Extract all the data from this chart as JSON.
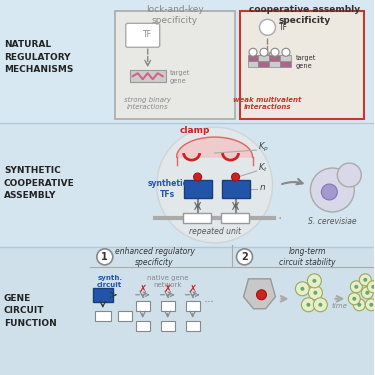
{
  "bg_top": "#d8e8f2",
  "bg_mid": "#d5e5ef",
  "bg_bot": "#cfe0eb",
  "border_gray": "#aaaaaa",
  "border_red": "#c0392b",
  "text_dark": "#333333",
  "text_gray": "#888888",
  "text_red": "#c0392b",
  "text_blue": "#2255aa",
  "blue_rect": "#2255aa",
  "red_circle": "#cc2222",
  "pink_fill": "#f5c0c0",
  "mauve": "#996688",
  "section1_label": "NATURAL\nREGULATORY\nMECHANISMS",
  "section2_label": "SYNTHETIC\nCOOPERATIVE\nASSEMBLY",
  "section3_label": "GENE\nCIRCUIT\nFUNCTION",
  "col1_title": "lock-and-key\nspecificity",
  "col2_title": "cooperative assembly\nspecificity",
  "label_strong": "strong binary\ninteractions",
  "label_weak": "weak multivalent\ninteractions",
  "label_clamp": "clamp",
  "label_synth_tfs": "synthetic\nTFs",
  "label_repeated": "repeated unit",
  "label_cerevisiae": "S. cerevisiae",
  "text_enhanced": "enhanced regulatory\nspecificity",
  "text_longterm": "long-term\ncircuit stability",
  "text_synth_circuit": "synth.\ncircuit",
  "text_native": "native gene\nnetwork",
  "text_time": "time"
}
